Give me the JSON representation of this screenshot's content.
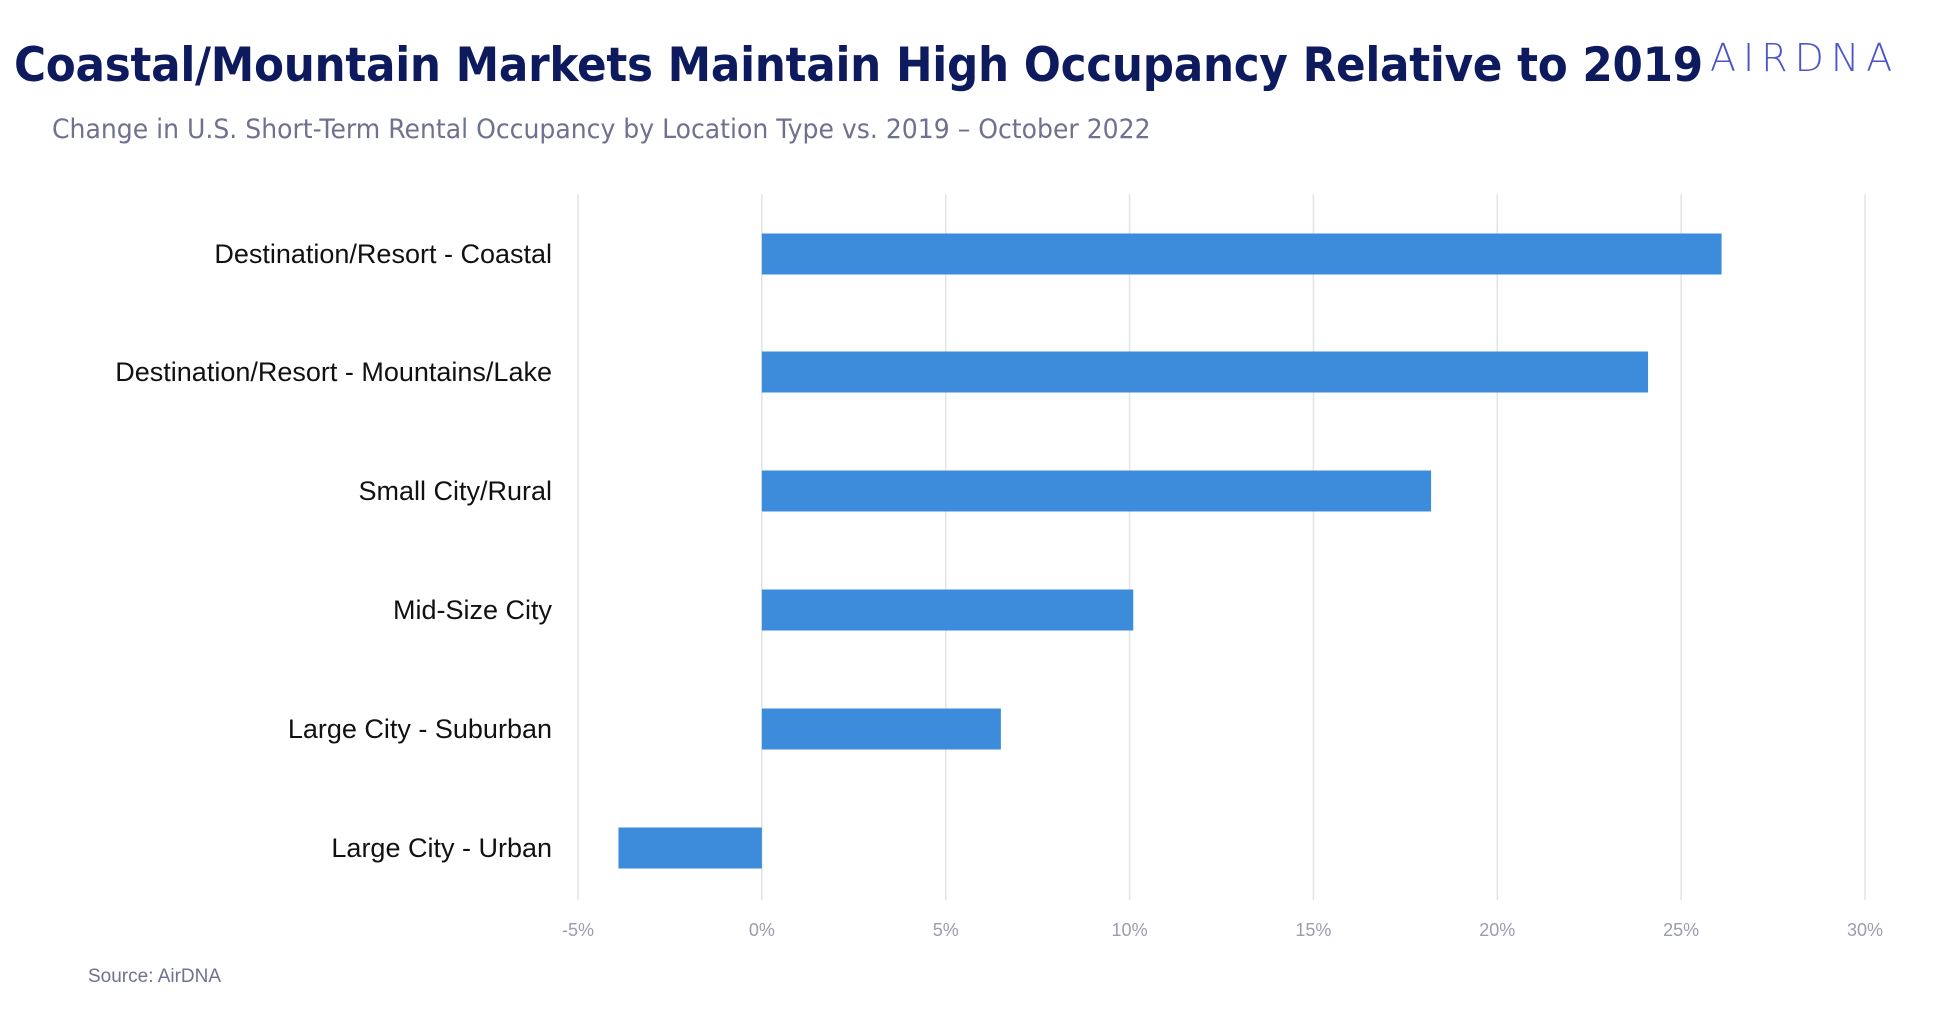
{
  "header": {
    "title": "Coastal/Mountain Markets Maintain High Occupancy Relative to 2019",
    "subtitle": "Change in U.S. Short-Term Rental Occupancy by Location Type vs. 2019 – October 2022",
    "logo_text": "AIRDNA"
  },
  "footer": {
    "source": "Source: AirDNA"
  },
  "colors": {
    "bar": "#3d8bdb",
    "title": "#0d1a5e",
    "grid": "#e4e4e8",
    "tick": "#9a9cb0"
  },
  "chart_data": {
    "type": "bar",
    "orientation": "horizontal",
    "title": "Coastal/Mountain Markets Maintain High Occupancy Relative to 2019",
    "subtitle": "Change in U.S. Short-Term Rental Occupancy by Location Type vs. 2019 – October 2022",
    "categories": [
      "Destination/Resort - Coastal",
      "Destination/Resort - Mountains/Lake",
      "Small City/Rural",
      "Mid-Size City",
      "Large City - Suburban",
      "Large City - Urban"
    ],
    "values": [
      26.1,
      24.1,
      18.2,
      10.1,
      6.5,
      -3.9
    ],
    "xlim": [
      -5,
      30
    ],
    "xticks": [
      -5,
      0,
      5,
      10,
      15,
      20,
      25,
      30
    ],
    "xtick_labels": [
      "-5%",
      "0%",
      "5%",
      "10%",
      "15%",
      "20%",
      "25%",
      "30%"
    ],
    "xlabel": "",
    "ylabel": "",
    "grid": "vertical"
  }
}
